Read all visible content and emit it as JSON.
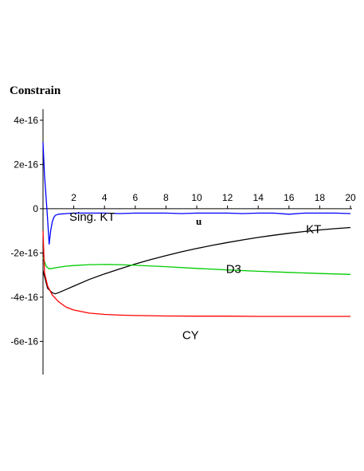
{
  "chart_data": {
    "type": "line",
    "title": "Constrain",
    "xlabel": "u",
    "ylabel": "",
    "xlim": [
      0,
      20
    ],
    "ylim": [
      -7.5e-16,
      4.5e-16
    ],
    "x_ticks": [
      2,
      4,
      6,
      8,
      10,
      12,
      14,
      16,
      18,
      20
    ],
    "x_tick_labels": [
      "2",
      "4",
      "6",
      "8",
      "10",
      "12",
      "14",
      "16",
      "18",
      "20"
    ],
    "y_ticks": [
      4e-16,
      2e-16,
      0,
      -2e-16,
      -4e-16,
      -6e-16
    ],
    "y_tick_labels": [
      "4e-16",
      "2e-16",
      "0",
      "-2e-16",
      "-4e-16",
      "-6e-16"
    ],
    "grid": false,
    "series": [
      {
        "name": "Sing. KT",
        "color": "#0000ff",
        "x": [
          0,
          0.1,
          0.2,
          0.3,
          0.4,
          0.5,
          0.6,
          0.7,
          0.8,
          1,
          1.5,
          2,
          3,
          4,
          5,
          6,
          7,
          8,
          9,
          10,
          11,
          12,
          13,
          14,
          15,
          16,
          17,
          18,
          19,
          20
        ],
        "y": [
          3e-16,
          1.5e-16,
          5e-17,
          -5e-17,
          -1.6e-16,
          -1e-16,
          -6e-17,
          -4e-17,
          -3e-17,
          -2.5e-17,
          -2.2e-17,
          -2e-17,
          -2e-17,
          -2e-17,
          -2.2e-17,
          -2e-17,
          -2e-17,
          -2e-17,
          -2.2e-17,
          -2e-17,
          -2e-17,
          -2e-17,
          -2.2e-17,
          -2e-17,
          -2e-17,
          -2.5e-17,
          -2e-17,
          -2e-17,
          -2e-17,
          -2.2e-17
        ]
      },
      {
        "name": "KT",
        "color": "#000000",
        "x": [
          0,
          0.3,
          0.6,
          0.8,
          1,
          1.5,
          2,
          3,
          4,
          5,
          6,
          7,
          8,
          9,
          10,
          11,
          12,
          13,
          14,
          15,
          16,
          17,
          18,
          19,
          20
        ],
        "y": [
          -2.8e-16,
          -3.6e-16,
          -3.8e-16,
          -3.85e-16,
          -3.8e-16,
          -3.65e-16,
          -3.5e-16,
          -3.2e-16,
          -2.95e-16,
          -2.72e-16,
          -2.5e-16,
          -2.3e-16,
          -2.12e-16,
          -1.95e-16,
          -1.8e-16,
          -1.66e-16,
          -1.53e-16,
          -1.41e-16,
          -1.3e-16,
          -1.2e-16,
          -1.11e-16,
          -1.03e-16,
          -9.6e-17,
          -9e-17,
          -8.5e-17
        ]
      },
      {
        "name": "D3",
        "color": "#00cc00",
        "x": [
          0,
          0.2,
          0.4,
          0.6,
          1,
          1.5,
          2,
          3,
          4,
          5,
          6,
          8,
          10,
          12,
          14,
          16,
          18,
          20
        ],
        "y": [
          -2.2e-16,
          -2.6e-16,
          -2.72e-16,
          -2.7e-16,
          -2.65e-16,
          -2.6e-16,
          -2.57e-16,
          -2.53e-16,
          -2.52e-16,
          -2.53e-16,
          -2.56e-16,
          -2.62e-16,
          -2.7e-16,
          -2.77e-16,
          -2.83e-16,
          -2.88e-16,
          -2.93e-16,
          -2.97e-16
        ]
      },
      {
        "name": "CY",
        "color": "#ff0000",
        "x": [
          0,
          0.1,
          0.3,
          0.6,
          1,
          1.5,
          2,
          3,
          4,
          5,
          6,
          8,
          10,
          12,
          14,
          16,
          18,
          20
        ],
        "y": [
          -1e-16,
          -2.9e-16,
          -3.5e-16,
          -3.9e-16,
          -4.2e-16,
          -4.45e-16,
          -4.58e-16,
          -4.72e-16,
          -4.78e-16,
          -4.81e-16,
          -4.83e-16,
          -4.85e-16,
          -4.86e-16,
          -4.86e-16,
          -4.87e-16,
          -4.87e-16,
          -4.87e-16,
          -4.87e-16
        ]
      }
    ],
    "annotations": [
      {
        "text": "Sing. KT",
        "x": 3.2,
        "y": -5.5e-17
      },
      {
        "text": "KT",
        "x": 17.6,
        "y": -1.1e-16
      },
      {
        "text": "D3",
        "x": 12.4,
        "y": -2.9e-16
      },
      {
        "text": "CY",
        "x": 9.6,
        "y": -5.9e-16
      }
    ]
  }
}
